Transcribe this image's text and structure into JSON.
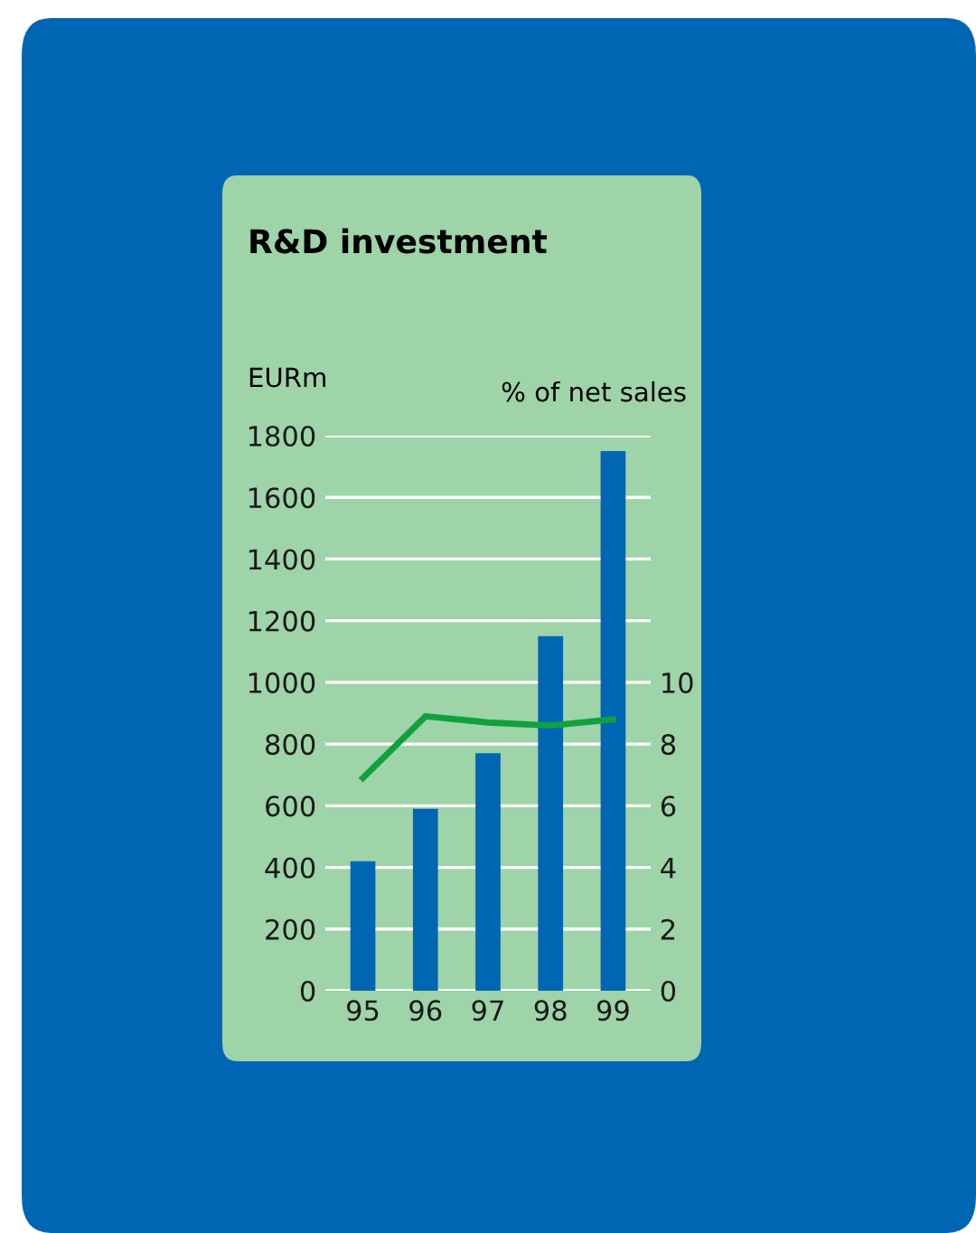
{
  "chart_data": {
    "type": "bar",
    "title": "R&D investment",
    "ylabel": "EURm",
    "y2label": "% of net sales",
    "categories": [
      "95",
      "96",
      "97",
      "98",
      "99"
    ],
    "series": [
      {
        "color": "#0066b3",
        "values": [
          420,
          590,
          770,
          1150,
          1750
        ]
      },
      {
        "type": "line",
        "axis": "y2",
        "color": "#10a040",
        "values": [
          6.9,
          8.9,
          8.7,
          8.6,
          8.8
        ]
      }
    ],
    "ylim": [
      0,
      1800
    ],
    "yticks": [
      0,
      200,
      400,
      600,
      800,
      1000,
      1200,
      1400,
      1600,
      1800
    ],
    "y2lim": [
      0,
      18
    ],
    "y2ticks": [
      0,
      2,
      4,
      6,
      8,
      10
    ],
    "grid": "y",
    "marker": "none",
    "line_style": "solid"
  }
}
